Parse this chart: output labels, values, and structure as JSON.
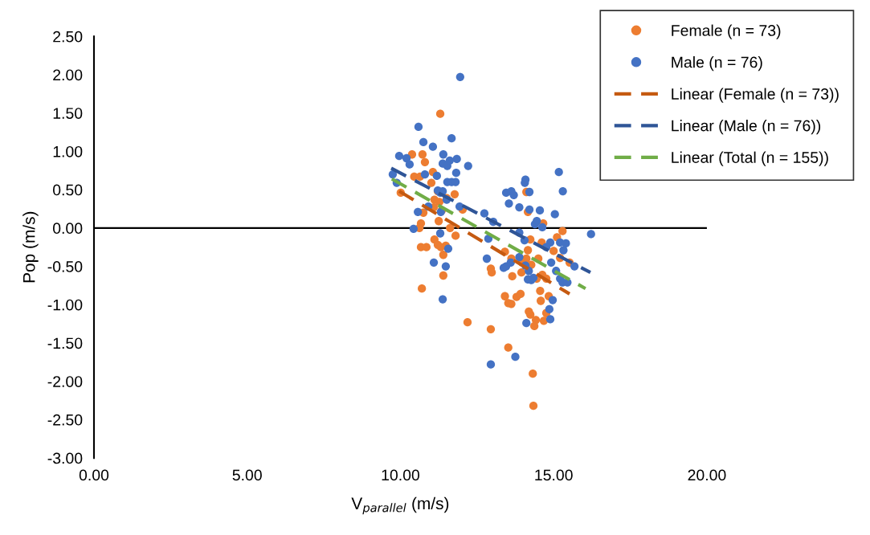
{
  "chart_data": {
    "type": "scatter",
    "xlabel": "V$_{parallel}$ (m/s)",
    "ylabel": "Pop (m/s)",
    "xlim": [
      0,
      20
    ],
    "xticks": [
      {
        "value": 0,
        "label": "0.00"
      },
      {
        "value": 5,
        "label": "5.00"
      },
      {
        "value": 10,
        "label": "10.00"
      },
      {
        "value": 15,
        "label": "15.00"
      },
      {
        "value": 20,
        "label": "20.00"
      }
    ],
    "ylim": [
      -3,
      2.5
    ],
    "yticks": [
      {
        "value": -3,
        "label": "-3.00"
      },
      {
        "value": -2.5,
        "label": "-2.50"
      },
      {
        "value": -2,
        "label": "-2.00"
      },
      {
        "value": -1.5,
        "label": "-1.50"
      },
      {
        "value": -1,
        "label": "-1.00"
      },
      {
        "value": -0.5,
        "label": "-0.50"
      },
      {
        "value": 0,
        "label": "0.00"
      },
      {
        "value": 0.5,
        "label": "0.50"
      },
      {
        "value": 1,
        "label": "1.00"
      },
      {
        "value": 1.5,
        "label": "1.50"
      },
      {
        "value": 2,
        "label": "2.00"
      },
      {
        "value": 2.5,
        "label": "2.50"
      }
    ],
    "grid": false,
    "legend": "top right",
    "ref_lines": [
      {
        "axis": "y",
        "value": 0,
        "color": "#000000",
        "line_style": "solid"
      }
    ],
    "series": [
      {
        "name": "Female (n = 73)",
        "marker": "circle",
        "color": "#ed7d31",
        "x": [
          11.3,
          10.38,
          10.72,
          10.8,
          10.45,
          10.64,
          10.01,
          11.06,
          11.01,
          11.22,
          11.11,
          11.27,
          11.51,
          11.35,
          11.09,
          10.75,
          10.67,
          10.62,
          11.25,
          11.62,
          11.8,
          10.67,
          10.85,
          11.11,
          11.22,
          11.32,
          11.48,
          11.4,
          11.4,
          10.7,
          12.03,
          11.77,
          12.19,
          12.95,
          12.95,
          13.52,
          13.41,
          13.52,
          13.62,
          13.79,
          13.92,
          13.65,
          13.62,
          13.41,
          12.98,
          13.95,
          13.97,
          14.11,
          14.24,
          14.16,
          14.27,
          14.24,
          14.42,
          14.37,
          14.19,
          14.32,
          14.34,
          14.56,
          14.58,
          14.68,
          14.76,
          14.84,
          14.63,
          14.76,
          14.45,
          14.5,
          14.61,
          14.66,
          15.11,
          15.0,
          15.21,
          15.29,
          15.52,
          14.16,
          14.11
        ],
        "values": [
          1.49,
          0.96,
          0.96,
          0.86,
          0.67,
          0.67,
          0.46,
          0.73,
          0.59,
          0.48,
          0.37,
          0.34,
          0.39,
          0.23,
          0.27,
          0.2,
          0.06,
          0.0,
          0.09,
          0.0,
          -0.1,
          -0.25,
          -0.25,
          -0.15,
          -0.22,
          -0.25,
          -0.23,
          -0.35,
          -0.62,
          -0.79,
          0.24,
          0.44,
          -1.23,
          -1.32,
          -0.53,
          -1.56,
          -0.89,
          -0.98,
          -0.99,
          -0.9,
          -0.86,
          -0.63,
          -0.4,
          -0.31,
          -0.58,
          -0.58,
          -0.45,
          -0.4,
          -0.15,
          -0.29,
          -0.48,
          -1.13,
          -1.2,
          -1.28,
          -1.09,
          -1.9,
          -2.32,
          -0.82,
          -0.95,
          -1.21,
          -1.11,
          -0.89,
          -0.61,
          -0.66,
          -0.66,
          -0.4,
          -0.19,
          0.06,
          -0.12,
          -0.3,
          -0.39,
          -0.04,
          -0.45,
          0.21,
          0.47
        ]
      },
      {
        "name": "Male (n = 76)",
        "marker": "circle",
        "color": "#4472c4",
        "x": [
          11.95,
          10.59,
          10.75,
          11.06,
          11.4,
          11.67,
          9.96,
          10.2,
          10.3,
          11.38,
          11.53,
          11.61,
          11.84,
          12.21,
          9.75,
          9.88,
          10.8,
          11.19,
          11.53,
          11.67,
          11.82,
          11.8,
          11.3,
          11.22,
          11.38,
          11.51,
          11.93,
          10.57,
          10.91,
          10.43,
          11.32,
          11.3,
          11.56,
          11.09,
          11.48,
          11.38,
          12.74,
          13.03,
          12.87,
          12.82,
          12.95,
          13.75,
          13.45,
          13.62,
          13.7,
          13.54,
          13.88,
          14.21,
          14.08,
          14.06,
          14.21,
          14.55,
          14.45,
          14.39,
          13.88,
          14.05,
          14.08,
          14.63,
          14.19,
          14.27,
          14.16,
          14.34,
          14.89,
          14.92,
          15.08,
          15.21,
          15.29,
          15.45,
          15.21,
          15.32,
          15.4,
          15.68,
          16.22,
          15.17,
          15.3,
          15.04,
          14.97,
          14.86,
          14.89,
          14.11,
          13.37,
          13.45,
          13.6,
          13.88,
          14.76
        ],
        "values": [
          1.97,
          1.32,
          1.12,
          1.06,
          0.96,
          1.17,
          0.94,
          0.91,
          0.83,
          0.84,
          0.81,
          0.88,
          0.9,
          0.81,
          0.7,
          0.59,
          0.7,
          0.68,
          0.6,
          0.6,
          0.72,
          0.6,
          0.46,
          0.49,
          0.48,
          0.37,
          0.28,
          0.21,
          0.28,
          -0.01,
          0.21,
          -0.07,
          -0.27,
          -0.45,
          -0.5,
          -0.93,
          0.19,
          0.08,
          -0.14,
          -0.4,
          -1.78,
          -1.68,
          0.46,
          0.48,
          0.43,
          0.32,
          0.27,
          0.24,
          0.63,
          0.59,
          0.47,
          0.23,
          0.09,
          0.05,
          -0.06,
          -0.16,
          -0.49,
          0.01,
          -0.56,
          -0.68,
          -0.67,
          -0.65,
          -0.19,
          -0.45,
          -0.56,
          -0.66,
          -0.71,
          -0.71,
          -0.19,
          -0.29,
          -0.2,
          -0.5,
          -0.08,
          0.73,
          0.48,
          0.18,
          -0.94,
          -1.06,
          -1.19,
          -1.24,
          -0.52,
          -0.5,
          -0.45,
          -0.38,
          -0.25
        ]
      },
      {
        "name": "Linear (Female (n = 73))",
        "type": "line",
        "line_style": "dashed",
        "color": "#c55a11",
        "x": [
          9.96,
          15.52
        ],
        "values": [
          0.48,
          -0.86
        ]
      },
      {
        "name": "Linear (Male (n = 76))",
        "type": "line",
        "line_style": "dashed",
        "color": "#2f5597",
        "x": [
          9.7,
          16.2
        ],
        "values": [
          0.78,
          -0.58
        ]
      },
      {
        "name": "Linear (Total (n = 155))",
        "type": "line",
        "line_style": "dashed",
        "color": "#70ad47",
        "x": [
          9.72,
          16.04
        ],
        "values": [
          0.64,
          -0.79
        ]
      }
    ]
  }
}
